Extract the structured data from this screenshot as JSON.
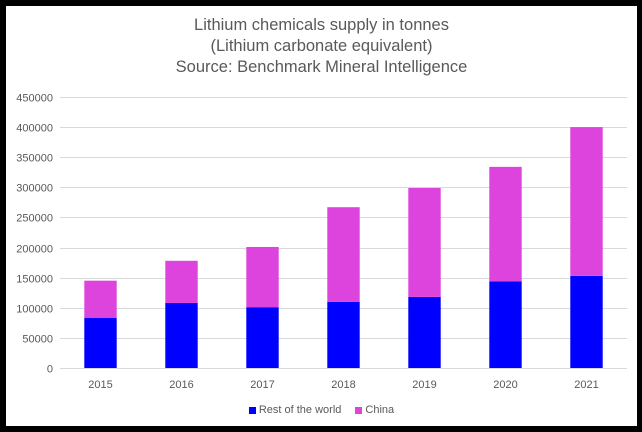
{
  "chart_data": {
    "type": "bar",
    "stacked": true,
    "title": [
      "Lithium chemicals supply in tonnes",
      "(Lithium carbonate equivalent)",
      "Source: Benchmark Mineral Intelligence"
    ],
    "xlabel": "",
    "ylabel": "",
    "categories": [
      "2015",
      "2016",
      "2017",
      "2018",
      "2019",
      "2020",
      "2021"
    ],
    "series": [
      {
        "name": "Rest of the world",
        "color": "#0000FF",
        "values": [
          83000,
          108000,
          101000,
          110000,
          118000,
          144000,
          153000
        ]
      },
      {
        "name": "China",
        "color": "#DD44DD",
        "values": [
          62000,
          70000,
          100000,
          157000,
          181000,
          190000,
          247000
        ]
      }
    ],
    "ylim": [
      0,
      450000
    ],
    "yticks": [
      "0",
      "50000",
      "100000",
      "150000",
      "200000",
      "250000",
      "300000",
      "350000",
      "400000",
      "450000"
    ],
    "grid": true,
    "legend": "bottom"
  }
}
